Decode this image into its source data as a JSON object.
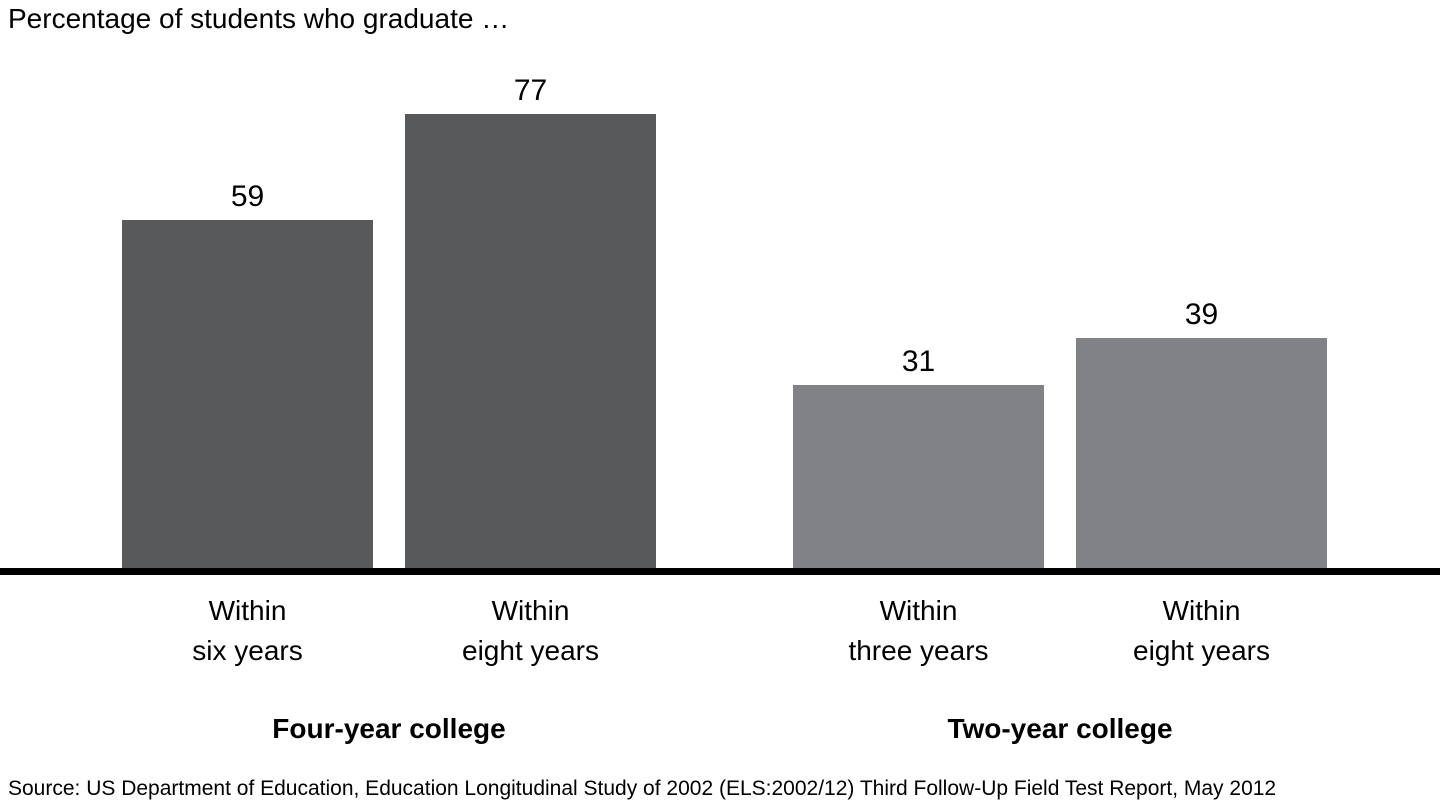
{
  "title": "Percentage of students who graduate …",
  "source": "Source: US Department of Education, Education Longitudinal Study of 2002 (ELS:2002/12) Third Follow-Up Field Test Report, May 2012",
  "colors": {
    "four_year_bar": "#58595b",
    "two_year_bar": "#808285",
    "axis": "#000000",
    "text": "#000000",
    "background": "#ffffff"
  },
  "chart_data": {
    "type": "bar",
    "title": "Percentage of students who graduate …",
    "categories": [
      "Within six years",
      "Within eight years",
      "Within three years",
      "Within eight years"
    ],
    "values": [
      59,
      77,
      31,
      39
    ],
    "groups": [
      {
        "label": "Four-year college",
        "categories": [
          "Within six years",
          "Within eight years"
        ],
        "values": [
          59,
          77
        ]
      },
      {
        "label": "Two-year college",
        "categories": [
          "Within three years",
          "Within eight years"
        ],
        "values": [
          31,
          39
        ]
      }
    ],
    "bars": [
      {
        "value": 59,
        "label": "Within\nsix years",
        "group": "Four-year college",
        "color": "#58595b"
      },
      {
        "value": 77,
        "label": "Within\neight years",
        "group": "Four-year college",
        "color": "#58595b"
      },
      {
        "value": 31,
        "label": "Within\nthree years",
        "group": "Two-year college",
        "color": "#808285"
      },
      {
        "value": 39,
        "label": "Within\neight years",
        "group": "Two-year college",
        "color": "#808285"
      }
    ],
    "ylim": [
      0,
      96
    ],
    "xlabel": "",
    "ylabel": "",
    "grid": false,
    "legend": false,
    "value_labels": "above bars",
    "baseline": "thick black full-width"
  }
}
